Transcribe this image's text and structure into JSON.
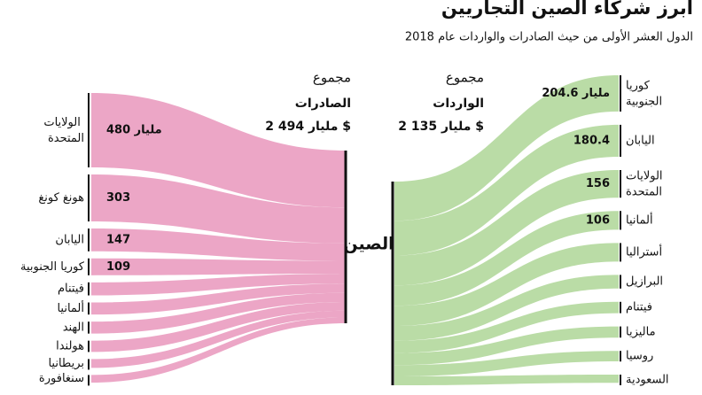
{
  "chart_data": {
    "type": "sankey",
    "title": "أبرز شركاء الصين التجاريين",
    "subtitle": "الدول العشر الأولى من حيث الصادرات والواردات عام 2018",
    "center_label": "الصين",
    "series": [
      {
        "name": "الصادرات",
        "total_caption": "مجموع",
        "total": 2494,
        "total_label": "2 494 مليار $",
        "color": "#eca6c6",
        "text_color": "#d4649b",
        "categories": [
          "الولايات المتحدة",
          "هونغ كونغ",
          "اليابان",
          "كوريا الجنوبية",
          "فيتنام",
          "ألمانيا",
          "الهند",
          "هولندا",
          "بريطانيا",
          "سنغافورة"
        ],
        "values": [
          480,
          303,
          147,
          109,
          84,
          78,
          77,
          73,
          57,
          49
        ],
        "value_labels": [
          "480 مليار",
          "303",
          "147",
          "109",
          null,
          null,
          null,
          null,
          null,
          null
        ]
      },
      {
        "name": "الواردات",
        "total_caption": "مجموع",
        "total": 2135,
        "total_label": "2 135 مليار $",
        "color": "#badca6",
        "text_color": "#8cc46c",
        "categories": [
          "كوريا الجنوبية",
          "اليابان",
          "الولايات المتحدة",
          "ألمانيا",
          "أستراليا",
          "البرازيل",
          "فيتنام",
          "ماليزيا",
          "روسيا",
          "السعودية"
        ],
        "values": [
          204.6,
          180.4,
          156,
          106,
          105,
          77,
          64,
          63,
          59,
          46
        ],
        "value_labels": [
          "204.6 مليار",
          "180.4",
          "156",
          "106",
          null,
          null,
          null,
          null,
          null,
          null
        ]
      }
    ]
  }
}
